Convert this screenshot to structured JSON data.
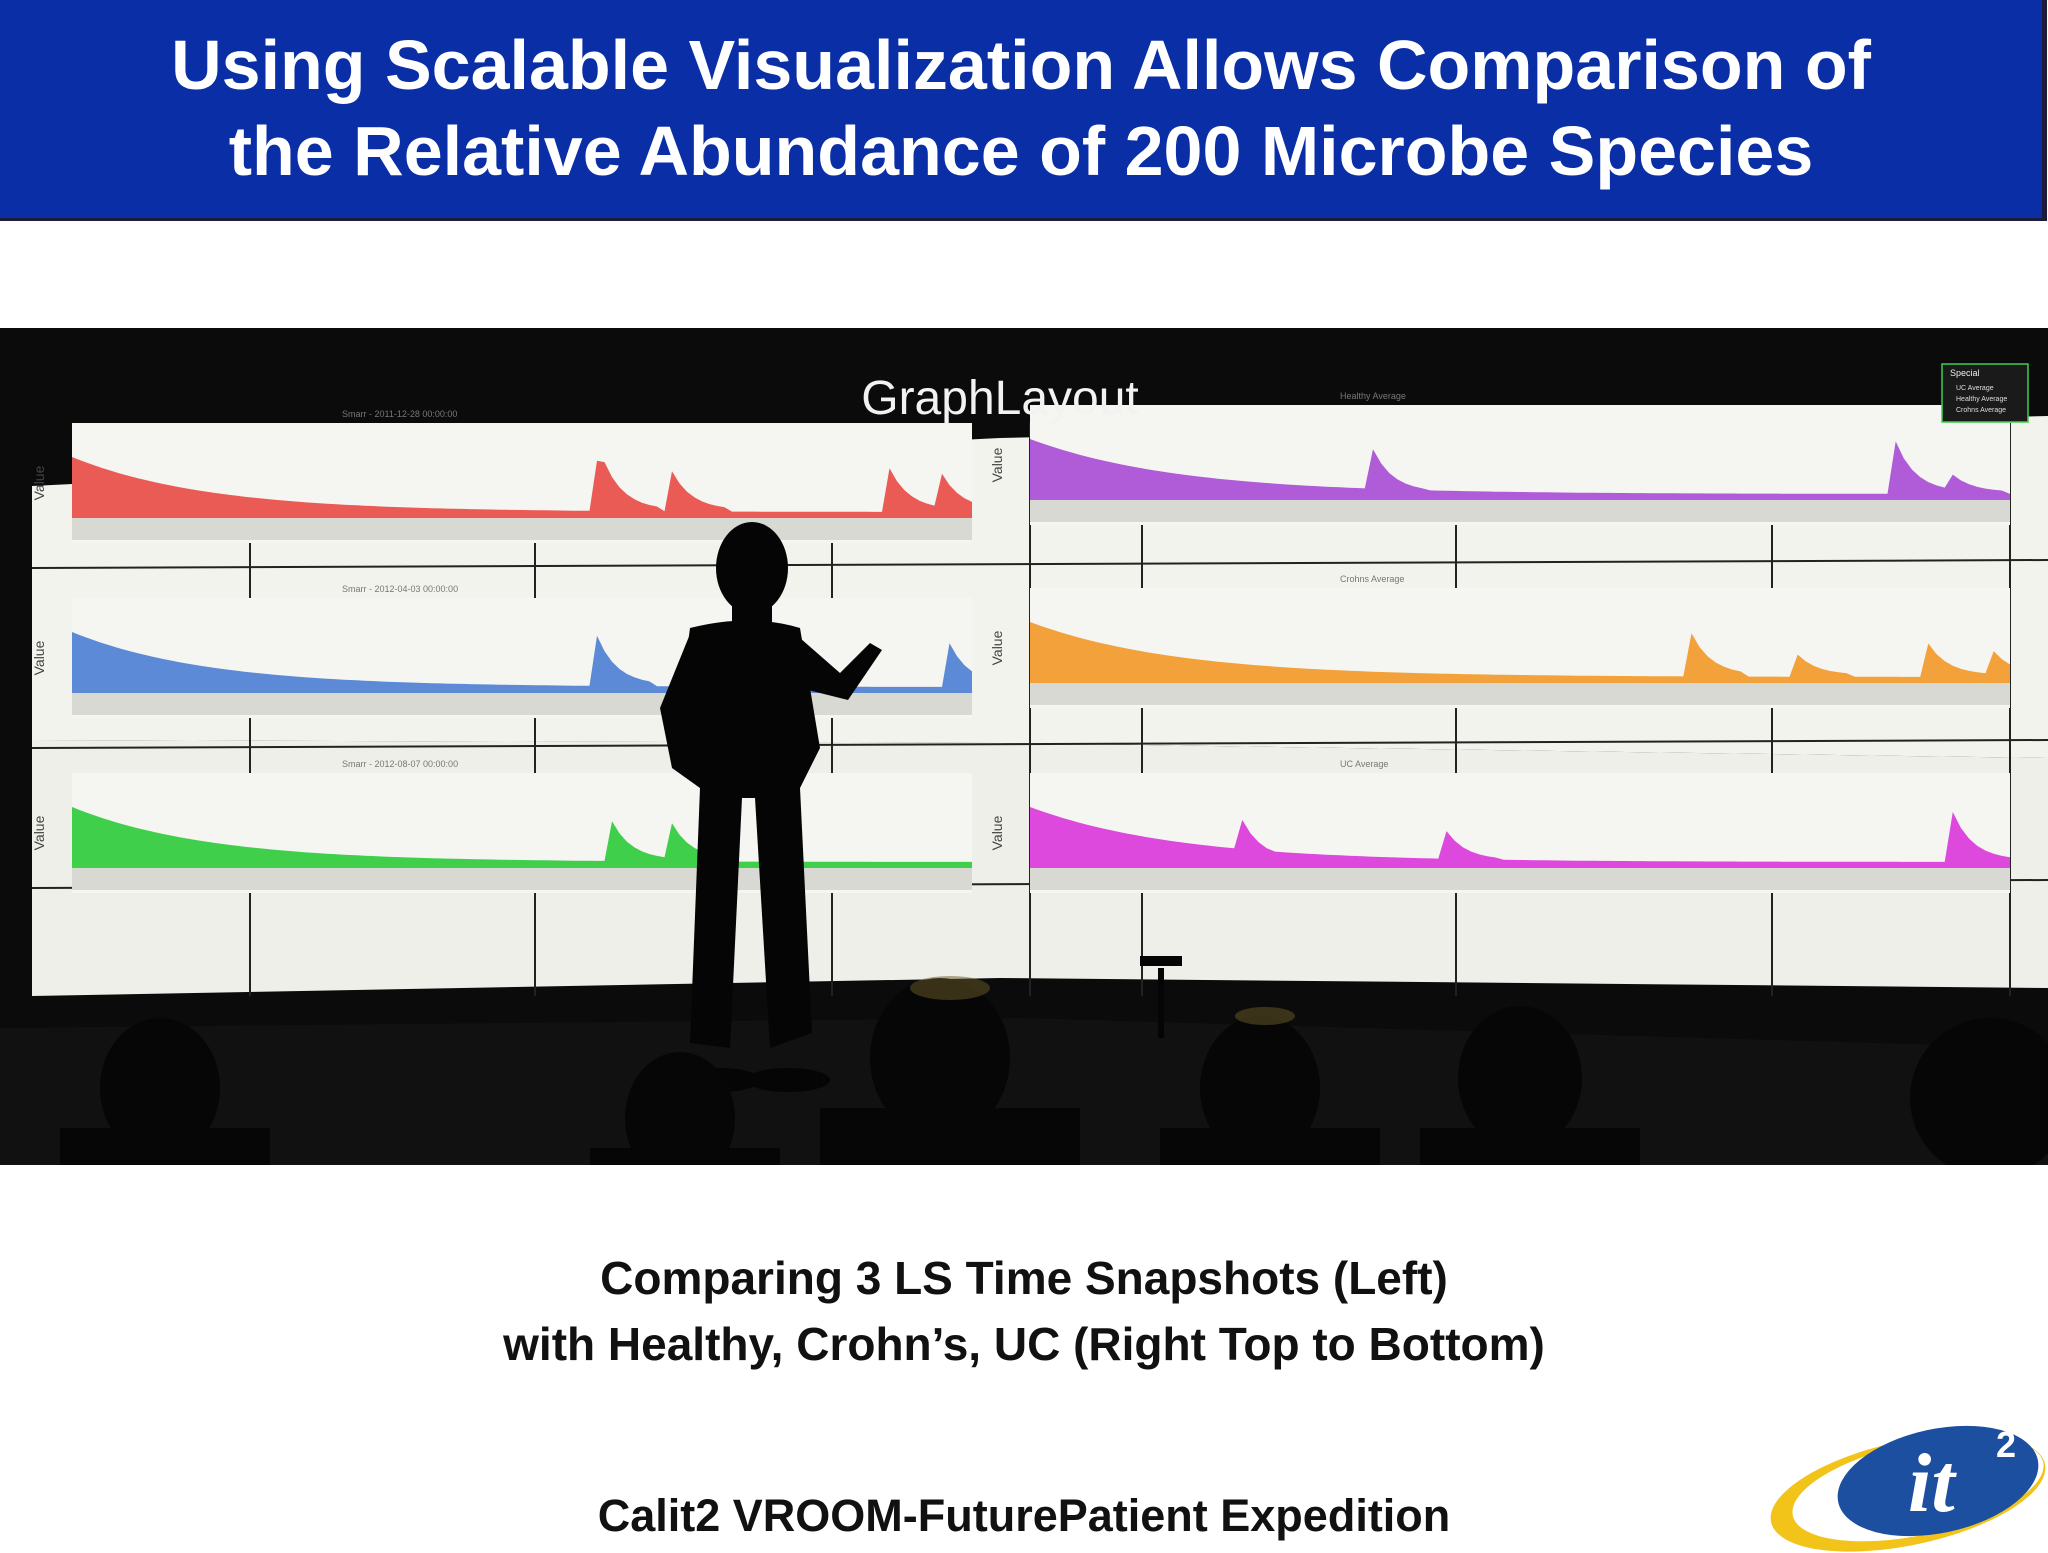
{
  "slide": {
    "title_line1": "Using Scalable Visualization Allows Comparison of",
    "title_line2": "the Relative Abundance of 200 Microbe Species",
    "caption_line1": "Comparing 3 LS Time Snapshots (Left)",
    "caption_line2": "with Healthy, Crohn’s, UC (Right Top to Bottom)",
    "credit": "Calit2 VROOM-FuturePatient Expedition"
  },
  "photo": {
    "wall_heading": "GraphLayout",
    "axis_label": "Value",
    "left_panels": [
      {
        "label": "Smarr - 2011-12-28 00:00:00",
        "color": "#ea5b56"
      },
      {
        "label": "Smarr - 2012-04-03 00:00:00",
        "color": "#5c8ad6"
      },
      {
        "label": "Smarr - 2012-08-07 00:00:00",
        "color": "#3fcf4a"
      }
    ],
    "right_panels": [
      {
        "label": "Healthy Average",
        "color": "#b05bd8"
      },
      {
        "label": "Crohns Average",
        "color": "#f2a13b"
      },
      {
        "label": "UC Average",
        "color": "#dc49dc"
      }
    ],
    "legend": {
      "title": "Special",
      "items": [
        "UC Average",
        "Healthy Average",
        "Crohns Average"
      ]
    }
  },
  "logo": {
    "text": "it",
    "superscript": "2"
  }
}
